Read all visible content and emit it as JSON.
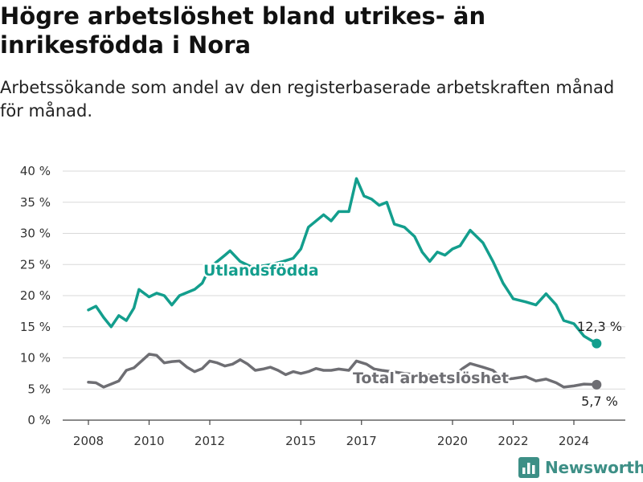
{
  "title": "Högre arbetslöshet bland utrikes- än inrikesfödda i Nora",
  "subtitle": "Arbetssökande som andel av den registerbaserade arbetskraften månad för månad.",
  "brand": "Newsworthy",
  "colors": {
    "utlandsfodda": "#139e8d",
    "total": "#6e6e73",
    "grid": "#d9d9d9",
    "brand": "#3d8f86"
  },
  "chart_data": {
    "type": "line",
    "title": "Högre arbetslöshet bland utrikes- än inrikesfödda i Nora",
    "xlabel": "",
    "ylabel": "",
    "x_ticks": [
      "2008",
      "2010",
      "2012",
      "2015",
      "2017",
      "2020",
      "2022",
      "2024"
    ],
    "y_ticks": [
      "0 %",
      "5 %",
      "10 %",
      "15 %",
      "20 %",
      "25 %",
      "30 %",
      "35 %",
      "40 %"
    ],
    "ylim": [
      0,
      40
    ],
    "grid": true,
    "legend": "inline labels",
    "series": [
      {
        "name": "Utlandsfödda",
        "color": "#139e8d",
        "end_label": "12,3 %",
        "points": [
          [
            "2008-01",
            17.7
          ],
          [
            "2008-04",
            18.3
          ],
          [
            "2008-07",
            16.5
          ],
          [
            "2008-10",
            15.0
          ],
          [
            "2009-01",
            16.8
          ],
          [
            "2009-04",
            16.0
          ],
          [
            "2009-07",
            18.0
          ],
          [
            "2009-09",
            21.0
          ],
          [
            "2010-01",
            19.8
          ],
          [
            "2010-04",
            20.4
          ],
          [
            "2010-07",
            20.0
          ],
          [
            "2010-10",
            18.5
          ],
          [
            "2011-01",
            20.0
          ],
          [
            "2011-04",
            20.5
          ],
          [
            "2011-07",
            21.0
          ],
          [
            "2011-10",
            22.0
          ],
          [
            "2012-01",
            24.5
          ],
          [
            "2012-04",
            25.5
          ],
          [
            "2012-07",
            26.5
          ],
          [
            "2012-09",
            27.2
          ],
          [
            "2013-01",
            25.5
          ],
          [
            "2013-06",
            24.5
          ],
          [
            "2014-01",
            25.0
          ],
          [
            "2014-06",
            25.5
          ],
          [
            "2014-10",
            26.0
          ],
          [
            "2015-01",
            27.5
          ],
          [
            "2015-04",
            31.0
          ],
          [
            "2015-10",
            33.0
          ],
          [
            "2016-01",
            32.0
          ],
          [
            "2016-04",
            33.5
          ],
          [
            "2016-08",
            33.5
          ],
          [
            "2016-11",
            38.8
          ],
          [
            "2017-02",
            36.0
          ],
          [
            "2017-05",
            35.5
          ],
          [
            "2017-08",
            34.5
          ],
          [
            "2017-11",
            35.0
          ],
          [
            "2018-02",
            31.5
          ],
          [
            "2018-06",
            31.0
          ],
          [
            "2018-10",
            29.5
          ],
          [
            "2019-01",
            27.0
          ],
          [
            "2019-04",
            25.5
          ],
          [
            "2019-07",
            27.0
          ],
          [
            "2019-10",
            26.5
          ],
          [
            "2020-01",
            27.5
          ],
          [
            "2020-04",
            28.0
          ],
          [
            "2020-08",
            30.5
          ],
          [
            "2021-01",
            28.5
          ],
          [
            "2021-05",
            25.5
          ],
          [
            "2021-09",
            22.0
          ],
          [
            "2022-01",
            19.5
          ],
          [
            "2022-06",
            19.0
          ],
          [
            "2022-10",
            18.5
          ],
          [
            "2023-02",
            20.3
          ],
          [
            "2023-06",
            18.5
          ],
          [
            "2023-09",
            16.0
          ],
          [
            "2024-01",
            15.5
          ],
          [
            "2024-05",
            13.5
          ],
          [
            "2024-10",
            12.3
          ]
        ]
      },
      {
        "name": "Total arbetslöshet",
        "color": "#6e6e73",
        "end_label": "5,7 %",
        "points": [
          [
            "2008-01",
            6.1
          ],
          [
            "2008-04",
            6.0
          ],
          [
            "2008-07",
            5.3
          ],
          [
            "2008-10",
            5.8
          ],
          [
            "2009-01",
            6.3
          ],
          [
            "2009-04",
            8.0
          ],
          [
            "2009-07",
            8.4
          ],
          [
            "2009-10",
            9.5
          ],
          [
            "2010-01",
            10.6
          ],
          [
            "2010-04",
            10.4
          ],
          [
            "2010-07",
            9.2
          ],
          [
            "2010-10",
            9.4
          ],
          [
            "2011-01",
            9.5
          ],
          [
            "2011-04",
            8.5
          ],
          [
            "2011-07",
            7.8
          ],
          [
            "2011-10",
            8.3
          ],
          [
            "2012-01",
            9.5
          ],
          [
            "2012-04",
            9.2
          ],
          [
            "2012-07",
            8.7
          ],
          [
            "2012-10",
            9.0
          ],
          [
            "2013-01",
            9.7
          ],
          [
            "2013-04",
            9.0
          ],
          [
            "2013-07",
            8.0
          ],
          [
            "2013-10",
            8.2
          ],
          [
            "2014-01",
            8.5
          ],
          [
            "2014-04",
            8.0
          ],
          [
            "2014-07",
            7.3
          ],
          [
            "2014-10",
            7.8
          ],
          [
            "2015-01",
            7.5
          ],
          [
            "2015-04",
            7.8
          ],
          [
            "2015-07",
            8.3
          ],
          [
            "2015-10",
            8.0
          ],
          [
            "2016-01",
            8.0
          ],
          [
            "2016-04",
            8.2
          ],
          [
            "2016-08",
            8.0
          ],
          [
            "2016-11",
            9.5
          ],
          [
            "2017-03",
            9.0
          ],
          [
            "2017-06",
            8.2
          ],
          [
            "2017-09",
            8.0
          ],
          [
            "2018-01",
            7.8
          ],
          [
            "2018-06",
            7.5
          ],
          [
            "2019-01",
            7.2
          ],
          [
            "2019-06",
            7.3
          ],
          [
            "2020-01",
            7.0
          ],
          [
            "2020-05",
            8.3
          ],
          [
            "2020-08",
            9.1
          ],
          [
            "2021-01",
            8.5
          ],
          [
            "2021-05",
            8.0
          ],
          [
            "2021-09",
            6.5
          ],
          [
            "2022-01",
            6.7
          ],
          [
            "2022-06",
            7.0
          ],
          [
            "2022-10",
            6.3
          ],
          [
            "2023-02",
            6.6
          ],
          [
            "2023-06",
            6.0
          ],
          [
            "2023-09",
            5.3
          ],
          [
            "2024-01",
            5.5
          ],
          [
            "2024-05",
            5.8
          ],
          [
            "2024-10",
            5.7
          ]
        ]
      }
    ]
  }
}
